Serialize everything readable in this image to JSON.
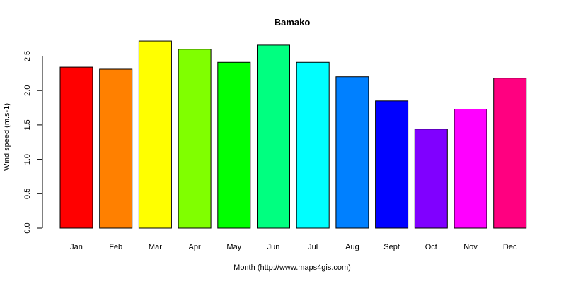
{
  "chart_data": {
    "type": "bar",
    "title": "Bamako",
    "xlabel": "Month (http://www.maps4gis.com)",
    "ylabel": "Wind speed (m.s-1)",
    "categories": [
      "Jan",
      "Feb",
      "Mar",
      "Apr",
      "May",
      "Jun",
      "Jul",
      "Aug",
      "Sept",
      "Oct",
      "Nov",
      "Dec"
    ],
    "values": [
      2.34,
      2.31,
      2.72,
      2.6,
      2.41,
      2.66,
      2.41,
      2.2,
      1.85,
      1.44,
      1.73,
      2.18
    ],
    "colors": [
      "#ff0000",
      "#ff8000",
      "#ffff00",
      "#80ff00",
      "#00ff00",
      "#00ff80",
      "#00ffff",
      "#0080ff",
      "#0000ff",
      "#8000ff",
      "#ff00ff",
      "#ff0080"
    ],
    "yticks": [
      "0.0",
      "0.5",
      "1.0",
      "1.5",
      "2.0",
      "2.5"
    ],
    "ylim": [
      0,
      2.72
    ],
    "grid": false,
    "legend": "none"
  }
}
